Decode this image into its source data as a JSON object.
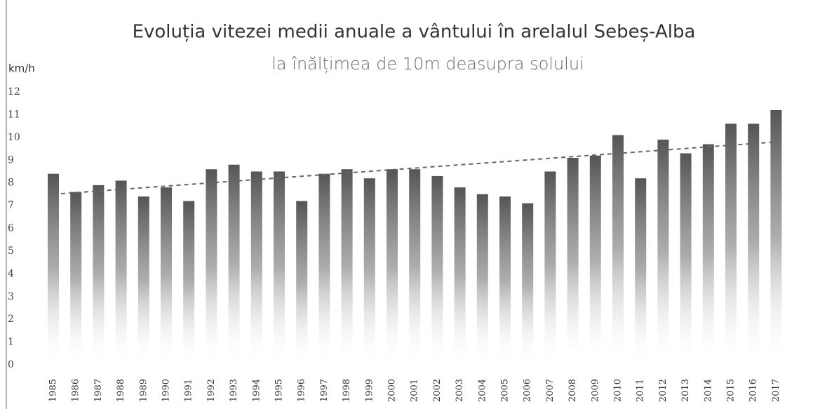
{
  "chart_data": {
    "type": "bar",
    "title": "Evoluția vitezei medii anuale a vântului în arelalul Sebeș-Alba",
    "subtitle": "la înălțimea de 10m deasupra solului",
    "y_label": "km/h",
    "categories": [
      "1985",
      "1986",
      "1987",
      "1988",
      "1989",
      "1990",
      "1991",
      "1992",
      "1993",
      "1994",
      "1995",
      "1996",
      "1997",
      "1998",
      "1999",
      "2000",
      "2001",
      "2002",
      "2003",
      "2004",
      "2005",
      "2006",
      "2007",
      "2008",
      "2009",
      "2010",
      "2011",
      "2012",
      "2013",
      "2014",
      "2015",
      "2016",
      "2017"
    ],
    "values": [
      8.4,
      7.6,
      7.9,
      8.1,
      7.4,
      7.8,
      7.2,
      8.6,
      8.8,
      8.5,
      8.5,
      7.2,
      8.4,
      8.6,
      8.2,
      8.6,
      8.6,
      8.3,
      7.8,
      7.5,
      7.4,
      7.1,
      8.5,
      9.1,
      9.2,
      10.1,
      8.2,
      9.9,
      9.3,
      9.7,
      10.6,
      10.6,
      11.2
    ],
    "color": "#555555",
    "trend": [
      7.5,
      9.8
    ],
    "ylim": [
      0,
      12
    ],
    "yticks": [
      0,
      1,
      2,
      3,
      4,
      5,
      6,
      7,
      8,
      9,
      10,
      11,
      12
    ],
    "grid": false
  }
}
